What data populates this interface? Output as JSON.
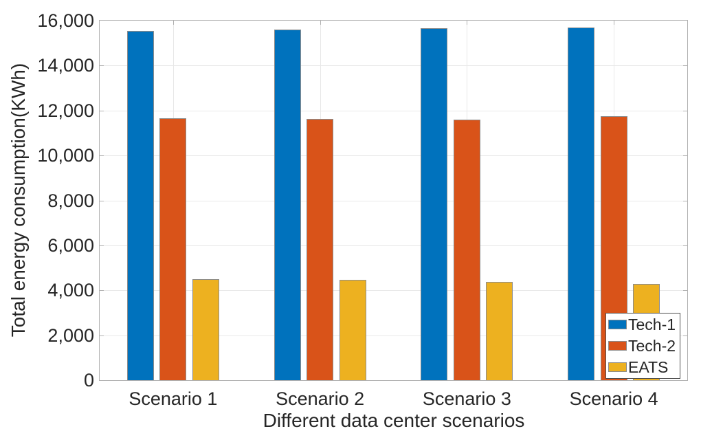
{
  "chart_data": {
    "type": "bar",
    "title": "",
    "xlabel": "Different data center scenarios",
    "ylabel": "Total energy consumption(KWh)",
    "categories": [
      "Scenario 1",
      "Scenario 2",
      "Scenario 3",
      "Scenario 4"
    ],
    "series": [
      {
        "name": "Tech-1",
        "color": "#0072BD",
        "values": [
          15550,
          15600,
          15670,
          15700
        ]
      },
      {
        "name": "Tech-2",
        "color": "#D95319",
        "values": [
          11660,
          11630,
          11590,
          11750
        ]
      },
      {
        "name": "EATS",
        "color": "#EDB120",
        "values": [
          4500,
          4470,
          4380,
          4280
        ]
      }
    ],
    "ylim": [
      0,
      16000
    ],
    "ytick_step": 2000,
    "ytick_labels": [
      "0",
      "2,000",
      "4,000",
      "6,000",
      "8,000",
      "10,000",
      "12,000",
      "14,000",
      "16,000"
    ],
    "grid": "both",
    "legend_position": "lower right",
    "legend_entries": [
      "Tech-1",
      "Tech-2",
      "EATS"
    ]
  },
  "colors": {
    "background": "#ffffff",
    "axis_box": "#b0b0b0",
    "gridline": "#e8e8e8",
    "bar_edge": "#8c8c8c",
    "text": "#262626",
    "legend_border": "#4d4d4d"
  }
}
